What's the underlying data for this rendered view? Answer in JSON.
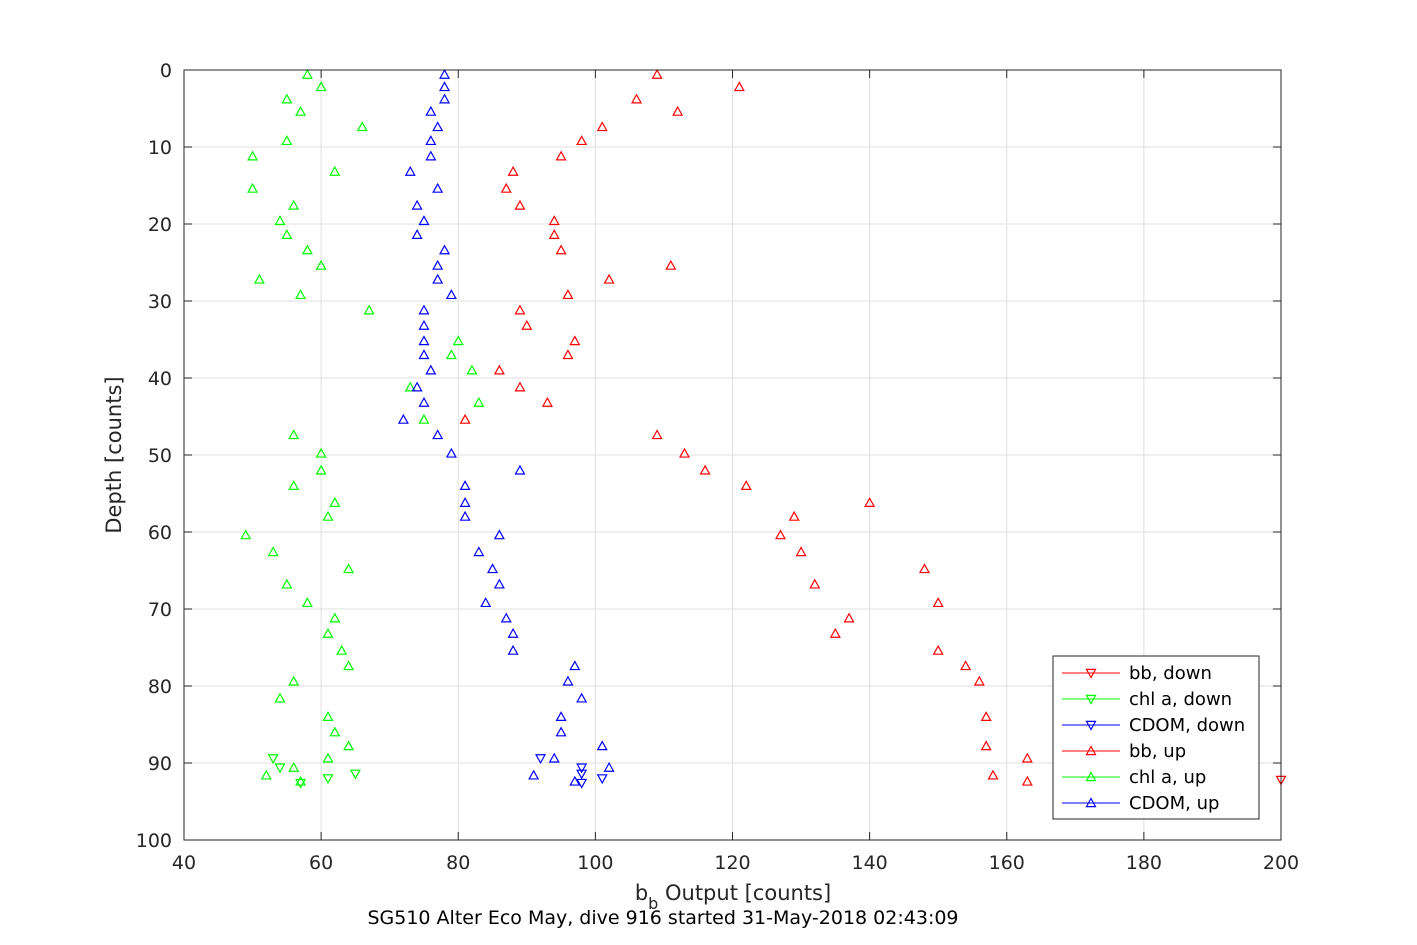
{
  "chart_data": {
    "type": "scatter",
    "xlabel": "b",
    "xlabel_subscript": "b",
    "xlabel_suffix": " Output [counts]",
    "ylabel": "Depth [counts]",
    "subtitle": "SG510 Alter Eco May, dive 916 started 31-May-2018 02:43:09",
    "xlim": [
      40,
      200
    ],
    "ylim": [
      0,
      100
    ],
    "y_reversed": true,
    "xticks": [
      40,
      60,
      80,
      100,
      120,
      140,
      160,
      180,
      200
    ],
    "yticks": [
      0,
      10,
      20,
      30,
      40,
      50,
      60,
      70,
      80,
      90,
      100
    ],
    "grid": true,
    "legend_position": "bottom-right",
    "series": [
      {
        "name": "bb, down",
        "color": "#ff0000",
        "marker": "triangle-down",
        "points": [
          [
            200,
            92.2
          ]
        ]
      },
      {
        "name": "chl a, down",
        "color": "#00ff00",
        "marker": "triangle-down",
        "points": [
          [
            53,
            89.4
          ],
          [
            54,
            90.6
          ],
          [
            65,
            91.4
          ],
          [
            61,
            92.0
          ],
          [
            57,
            92.6
          ]
        ]
      },
      {
        "name": "CDOM, down",
        "color": "#0000ff",
        "marker": "triangle-down",
        "points": [
          [
            92,
            89.4
          ],
          [
            98,
            90.6
          ],
          [
            98,
            91.4
          ],
          [
            101,
            92.0
          ],
          [
            98,
            92.6
          ]
        ]
      },
      {
        "name": "bb, up",
        "color": "#ff0000",
        "marker": "triangle-up",
        "points": [
          [
            109,
            0.6
          ],
          [
            121,
            2.2
          ],
          [
            106,
            3.8
          ],
          [
            112,
            5.4
          ],
          [
            101,
            7.4
          ],
          [
            98,
            9.2
          ],
          [
            95,
            11.2
          ],
          [
            88,
            13.2
          ],
          [
            87,
            15.4
          ],
          [
            89,
            17.6
          ],
          [
            94,
            19.6
          ],
          [
            94,
            21.4
          ],
          [
            95,
            23.4
          ],
          [
            111,
            25.4
          ],
          [
            102,
            27.2
          ],
          [
            96,
            29.2
          ],
          [
            89,
            31.2
          ],
          [
            90,
            33.2
          ],
          [
            97,
            35.2
          ],
          [
            96,
            37.0
          ],
          [
            86,
            39.0
          ],
          [
            89,
            41.2
          ],
          [
            93,
            43.2
          ],
          [
            81,
            45.4
          ],
          [
            109,
            47.4
          ],
          [
            113,
            49.8
          ],
          [
            116,
            52.0
          ],
          [
            122,
            54.0
          ],
          [
            140,
            56.2
          ],
          [
            129,
            58.0
          ],
          [
            127,
            60.4
          ],
          [
            130,
            62.6
          ],
          [
            148,
            64.8
          ],
          [
            132,
            66.8
          ],
          [
            150,
            69.2
          ],
          [
            137,
            71.2
          ],
          [
            135,
            73.2
          ],
          [
            150,
            75.4
          ],
          [
            154,
            77.4
          ],
          [
            156,
            79.4
          ],
          [
            157,
            84.0
          ],
          [
            157,
            87.8
          ],
          [
            163,
            89.4
          ],
          [
            158,
            91.6
          ],
          [
            163,
            92.4
          ]
        ]
      },
      {
        "name": "chl a, up",
        "color": "#00ff00",
        "marker": "triangle-up",
        "points": [
          [
            58,
            0.6
          ],
          [
            60,
            2.2
          ],
          [
            55,
            3.8
          ],
          [
            57,
            5.4
          ],
          [
            66,
            7.4
          ],
          [
            55,
            9.2
          ],
          [
            50,
            11.2
          ],
          [
            62,
            13.2
          ],
          [
            50,
            15.4
          ],
          [
            56,
            17.6
          ],
          [
            54,
            19.6
          ],
          [
            55,
            21.4
          ],
          [
            58,
            23.4
          ],
          [
            60,
            25.4
          ],
          [
            51,
            27.2
          ],
          [
            57,
            29.2
          ],
          [
            67,
            31.2
          ],
          [
            80,
            35.2
          ],
          [
            79,
            37.0
          ],
          [
            82,
            39.0
          ],
          [
            73,
            41.2
          ],
          [
            83,
            43.2
          ],
          [
            75,
            45.4
          ],
          [
            56,
            47.4
          ],
          [
            60,
            49.8
          ],
          [
            60,
            52.0
          ],
          [
            56,
            54.0
          ],
          [
            62,
            56.2
          ],
          [
            61,
            58.0
          ],
          [
            49,
            60.4
          ],
          [
            53,
            62.6
          ],
          [
            64,
            64.8
          ],
          [
            55,
            66.8
          ],
          [
            58,
            69.2
          ],
          [
            62,
            71.2
          ],
          [
            61,
            73.2
          ],
          [
            63,
            75.4
          ],
          [
            64,
            77.4
          ],
          [
            56,
            79.4
          ],
          [
            54,
            81.6
          ],
          [
            61,
            84.0
          ],
          [
            62,
            86.0
          ],
          [
            64,
            87.8
          ],
          [
            61,
            89.4
          ],
          [
            56,
            90.6
          ],
          [
            52,
            91.6
          ],
          [
            57,
            92.4
          ]
        ]
      },
      {
        "name": "CDOM, up",
        "color": "#0000ff",
        "marker": "triangle-up",
        "points": [
          [
            78,
            0.6
          ],
          [
            78,
            2.2
          ],
          [
            78,
            3.8
          ],
          [
            76,
            5.4
          ],
          [
            77,
            7.4
          ],
          [
            76,
            9.2
          ],
          [
            76,
            11.2
          ],
          [
            73,
            13.2
          ],
          [
            77,
            15.4
          ],
          [
            74,
            17.6
          ],
          [
            75,
            19.6
          ],
          [
            74,
            21.4
          ],
          [
            78,
            23.4
          ],
          [
            77,
            25.4
          ],
          [
            77,
            27.2
          ],
          [
            79,
            29.2
          ],
          [
            75,
            31.2
          ],
          [
            75,
            33.2
          ],
          [
            75,
            35.2
          ],
          [
            75,
            37.0
          ],
          [
            76,
            39.0
          ],
          [
            74,
            41.2
          ],
          [
            75,
            43.2
          ],
          [
            72,
            45.4
          ],
          [
            77,
            47.4
          ],
          [
            79,
            49.8
          ],
          [
            89,
            52.0
          ],
          [
            81,
            54.0
          ],
          [
            81,
            56.2
          ],
          [
            81,
            58.0
          ],
          [
            86,
            60.4
          ],
          [
            83,
            62.6
          ],
          [
            85,
            64.8
          ],
          [
            86,
            66.8
          ],
          [
            84,
            69.2
          ],
          [
            87,
            71.2
          ],
          [
            88,
            73.2
          ],
          [
            88,
            75.4
          ],
          [
            97,
            77.4
          ],
          [
            96,
            79.4
          ],
          [
            98,
            81.6
          ],
          [
            95,
            84.0
          ],
          [
            95,
            86.0
          ],
          [
            101,
            87.8
          ],
          [
            94,
            89.4
          ],
          [
            102,
            90.6
          ],
          [
            91,
            91.6
          ],
          [
            97,
            92.4
          ]
        ]
      }
    ]
  }
}
